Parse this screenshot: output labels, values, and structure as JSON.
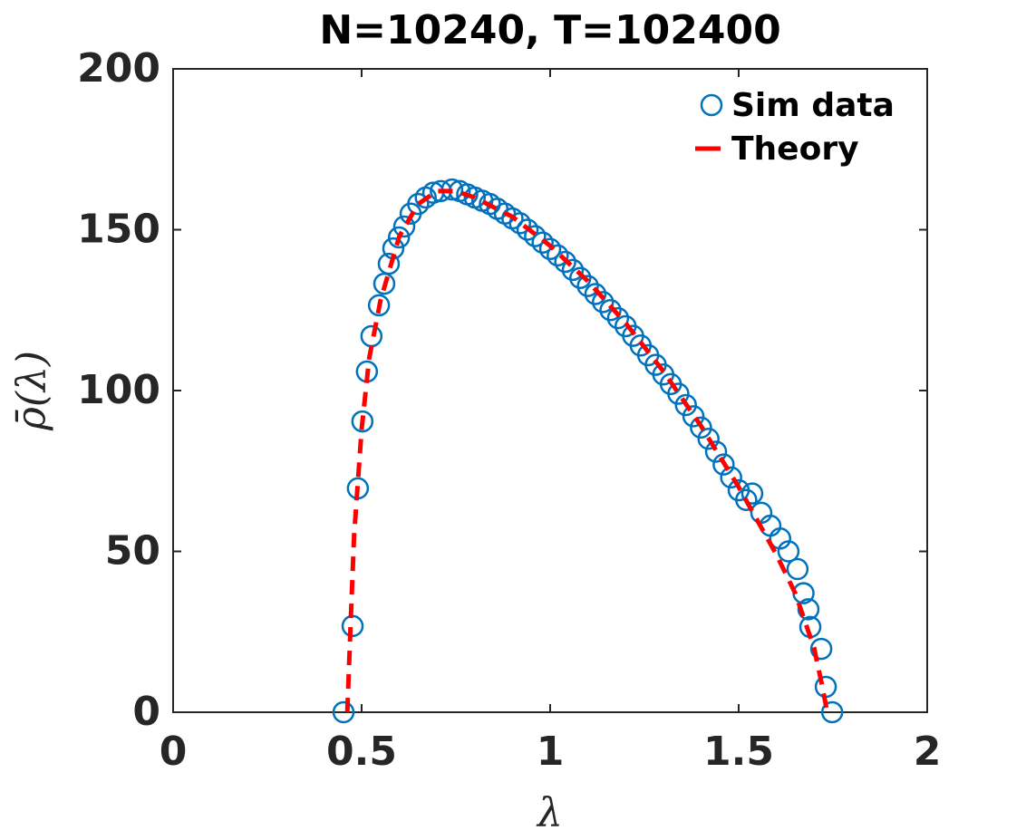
{
  "chart_data": {
    "type": "scatter+line",
    "title": "N=10240, T=102400",
    "xlabel": "λ",
    "ylabel": "ρ̄(λ)",
    "xlim": [
      0,
      2
    ],
    "xticks": [
      0,
      0.5,
      1,
      1.5,
      2
    ],
    "ylim": [
      0,
      200
    ],
    "yticks": [
      0,
      50,
      100,
      150,
      200
    ],
    "legend": "upper right",
    "series": [
      {
        "name": "Sim data",
        "kind": "scatter",
        "color": "#0072bd",
        "x": [
          0.452,
          0.476,
          0.49,
          0.502,
          0.514,
          0.526,
          0.546,
          0.56,
          0.572,
          0.584,
          0.599,
          0.613,
          0.63,
          0.65,
          0.67,
          0.69,
          0.71,
          0.74,
          0.76,
          0.78,
          0.8,
          0.82,
          0.84,
          0.86,
          0.88,
          0.9,
          0.92,
          0.94,
          0.96,
          0.98,
          1.0,
          1.02,
          1.04,
          1.06,
          1.08,
          1.1,
          1.12,
          1.14,
          1.16,
          1.18,
          1.2,
          1.22,
          1.24,
          1.26,
          1.28,
          1.3,
          1.32,
          1.34,
          1.36,
          1.38,
          1.4,
          1.42,
          1.44,
          1.46,
          1.48,
          1.5,
          1.52,
          1.536,
          1.56,
          1.584,
          1.61,
          1.632,
          1.656,
          1.672,
          1.685,
          1.69,
          1.719,
          1.731,
          1.748
        ],
        "values": [
          0,
          26.8,
          69.6,
          90.4,
          105.9,
          116.9,
          126.5,
          133.2,
          139.4,
          144.2,
          147.6,
          151,
          155,
          158,
          160,
          161.5,
          162,
          162.5,
          162,
          161,
          160,
          159,
          158,
          156.5,
          155,
          153.5,
          152,
          150,
          148,
          146,
          144,
          142,
          140,
          137.5,
          135,
          132.5,
          130,
          127.5,
          125,
          122.5,
          120,
          117,
          114,
          111,
          108,
          105,
          102,
          99,
          95.5,
          92,
          88.5,
          85,
          81,
          77,
          73,
          69,
          66,
          68,
          62,
          58,
          54,
          50,
          44.5,
          37,
          32,
          26.5,
          19.7,
          7.9,
          0
        ]
      },
      {
        "name": "Theory",
        "kind": "line",
        "color": "#ff0000",
        "x": [
          0.462,
          0.47,
          0.48,
          0.5,
          0.52,
          0.55,
          0.6,
          0.65,
          0.7,
          0.75,
          0.8,
          0.9,
          1.0,
          1.1,
          1.2,
          1.3,
          1.4,
          1.5,
          1.6,
          1.65,
          1.7,
          1.72,
          1.735
        ],
        "values": [
          0,
          25,
          55,
          88,
          110,
          128,
          148,
          158,
          162,
          162,
          160,
          154,
          145,
          134,
          121,
          106,
          89,
          70,
          49,
          37,
          20,
          9,
          0
        ]
      }
    ]
  }
}
